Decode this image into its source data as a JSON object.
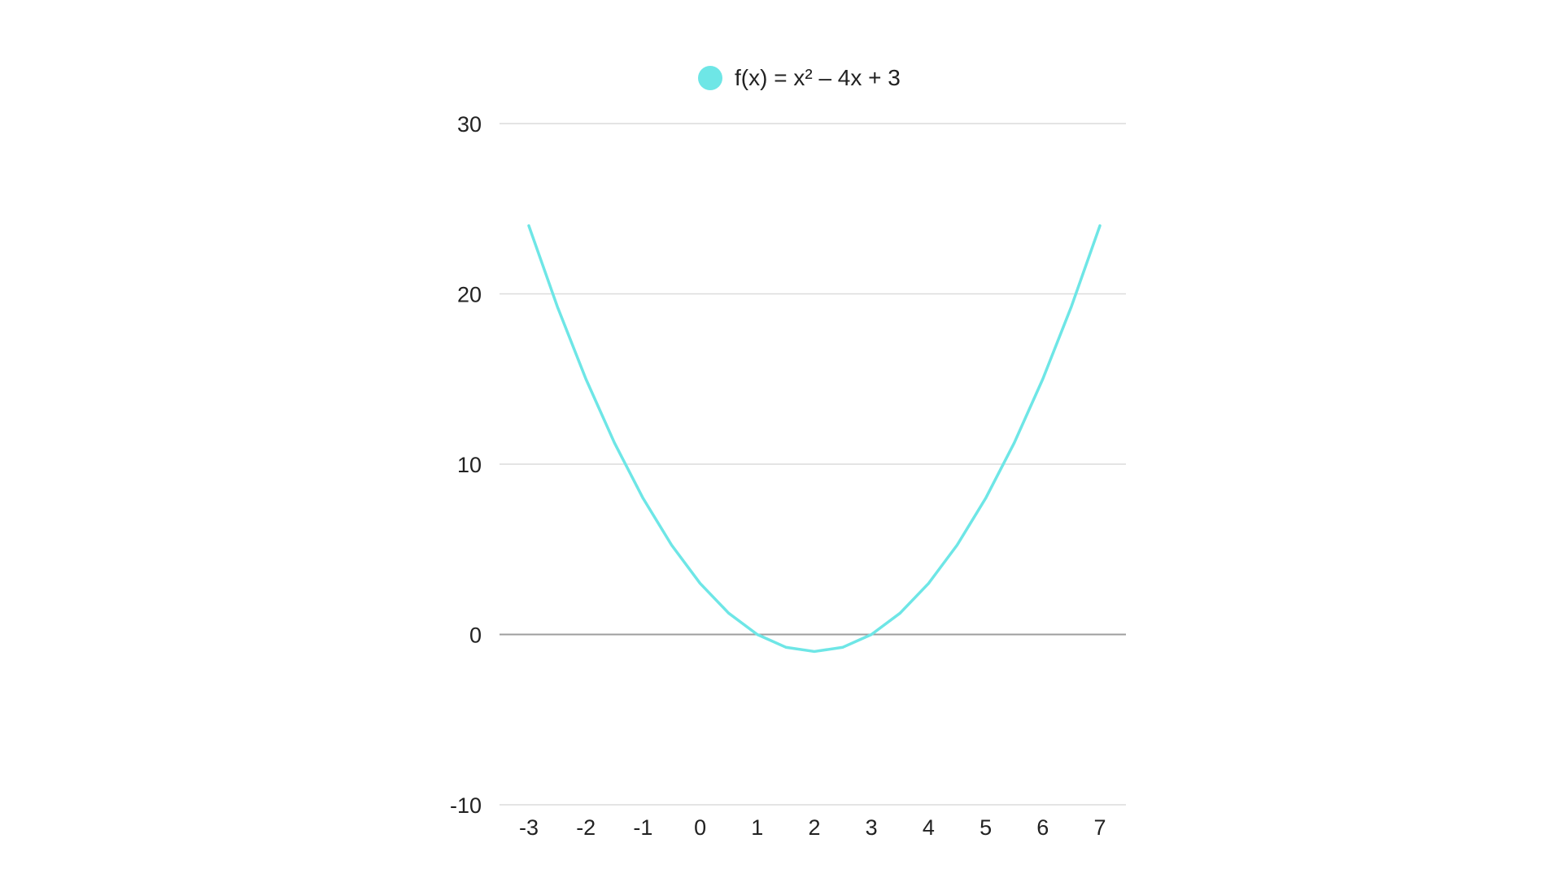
{
  "chart_data": {
    "type": "line",
    "title": "",
    "xlabel": "",
    "ylabel": "",
    "xlim": [
      -3,
      7
    ],
    "ylim": [
      -10,
      30
    ],
    "x_ticks": [
      "-3",
      "-2",
      "-1",
      "0",
      "1",
      "2",
      "3",
      "4",
      "5",
      "6",
      "7"
    ],
    "y_ticks": [
      "-10",
      "0",
      "10",
      "20",
      "30"
    ],
    "grid": true,
    "legend_position": "top-center",
    "series": [
      {
        "name": "f(x) = x² – 4x + 3",
        "color": "#6ee6e6",
        "x": [
          -3,
          -2.5,
          -2,
          -1.5,
          -1,
          -0.5,
          0,
          0.5,
          1,
          1.5,
          2,
          2.5,
          3,
          3.5,
          4,
          4.5,
          5,
          5.5,
          6,
          6.5,
          7
        ],
        "y": [
          24,
          19.25,
          15,
          11.25,
          8,
          5.25,
          3,
          1.25,
          0,
          -0.75,
          -1,
          -0.75,
          0,
          1.25,
          3,
          5.25,
          8,
          11.25,
          15,
          19.25,
          24
        ]
      }
    ]
  }
}
